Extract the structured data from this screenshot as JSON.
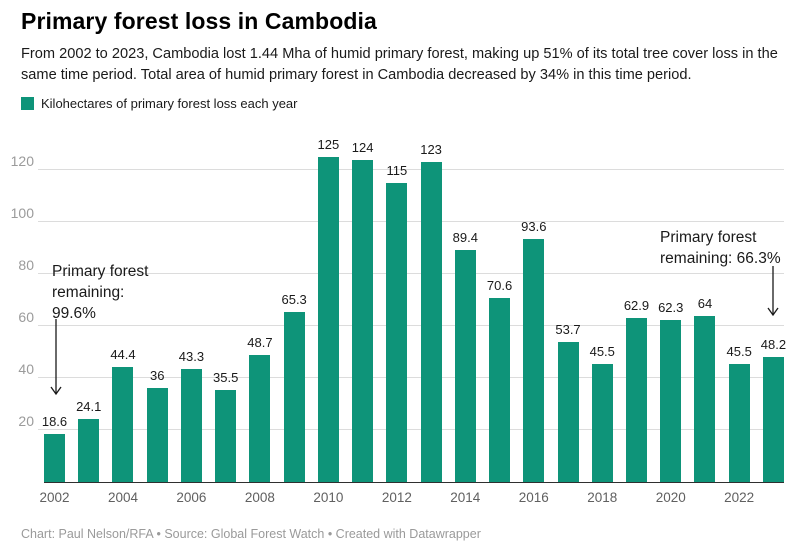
{
  "header": {
    "title": "Primary forest loss in Cambodia",
    "description": "From 2002 to 2023, Cambodia lost 1.44 Mha of humid primary forest, making up 51% of its total tree cover loss in the same time period. Total area of humid primary forest in Cambodia decreased by 34% in this time period."
  },
  "legend": {
    "swatch_color": "#0e9479",
    "label": "Kilohectares of primary forest loss each year"
  },
  "chart_data": {
    "type": "bar",
    "title": "Primary forest loss in Cambodia",
    "categories": [
      2002,
      2003,
      2004,
      2005,
      2006,
      2007,
      2008,
      2009,
      2010,
      2011,
      2012,
      2013,
      2014,
      2015,
      2016,
      2017,
      2018,
      2019,
      2020,
      2021,
      2022,
      2023
    ],
    "values": [
      18.6,
      24.1,
      44.4,
      36,
      43.3,
      35.5,
      48.7,
      65.3,
      125,
      124,
      115,
      123,
      89.4,
      70.6,
      93.6,
      53.7,
      45.5,
      62.9,
      62.3,
      64,
      45.5,
      48.2
    ],
    "unit": "kilohectares",
    "bar_color": "#0e9479",
    "ylim": [
      0,
      130
    ],
    "y_ticks": [
      20,
      40,
      60,
      80,
      100,
      120
    ],
    "x_tick_labels": [
      "2002",
      "2004",
      "2006",
      "2008",
      "2010",
      "2012",
      "2014",
      "2016",
      "2018",
      "2020",
      "2022"
    ],
    "grid": "horizontal",
    "value_labels": true,
    "legend_position": "top-left"
  },
  "annotations": {
    "left": {
      "lines": [
        "Primary forest",
        "remaining:",
        "99.6%"
      ]
    },
    "right": {
      "lines": [
        "Primary forest",
        "remaining: 66.3%"
      ]
    }
  },
  "footer": {
    "text": "Chart: Paul Nelson/RFA • Source: Global Forest Watch • Created with Datawrapper"
  }
}
